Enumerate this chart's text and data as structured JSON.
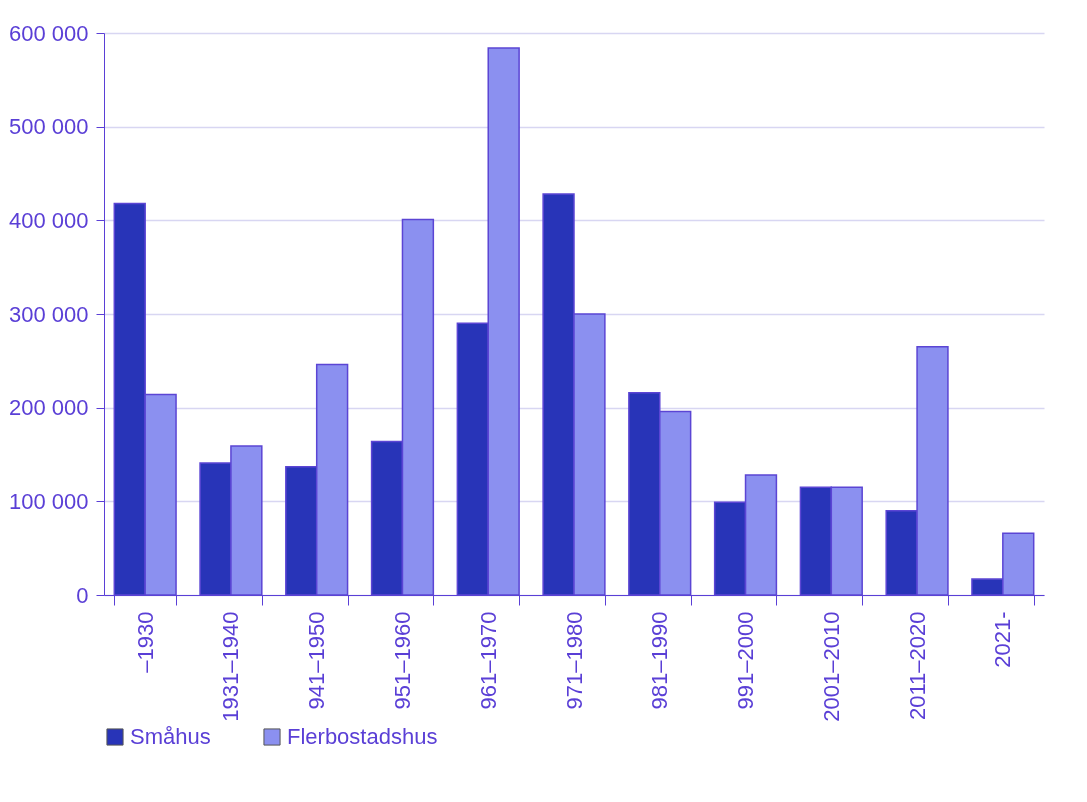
{
  "chart_data": {
    "type": "bar",
    "categories": [
      "–1930",
      "1931–1940",
      "941–1950",
      "951–1960",
      "961–1970",
      "971–1980",
      "981–1990",
      "991–2000",
      "2001–2010",
      "2011–2020",
      "2021-"
    ],
    "series": [
      {
        "name": "Småhus",
        "color": "#2834b8",
        "values": [
          418000,
          141000,
          137000,
          164000,
          290000,
          428000,
          216000,
          99000,
          115000,
          90000,
          17000
        ]
      },
      {
        "name": "Flerbostadshus",
        "color": "#8b90f0",
        "values": [
          214000,
          159000,
          246000,
          401000,
          584000,
          300000,
          196000,
          128000,
          115000,
          265000,
          66000
        ]
      }
    ],
    "ylim": [
      0,
      600000
    ],
    "yticks": [
      {
        "value": 0,
        "label": "0"
      },
      {
        "value": 100000,
        "label": "100 000"
      },
      {
        "value": 200000,
        "label": "200 000"
      },
      {
        "value": 300000,
        "label": "300 000"
      },
      {
        "value": 400000,
        "label": "400 000"
      },
      {
        "value": 500000,
        "label": "500 000"
      },
      {
        "value": 600000,
        "label": "600 000"
      }
    ],
    "grid": "y",
    "legend": "bottom"
  }
}
